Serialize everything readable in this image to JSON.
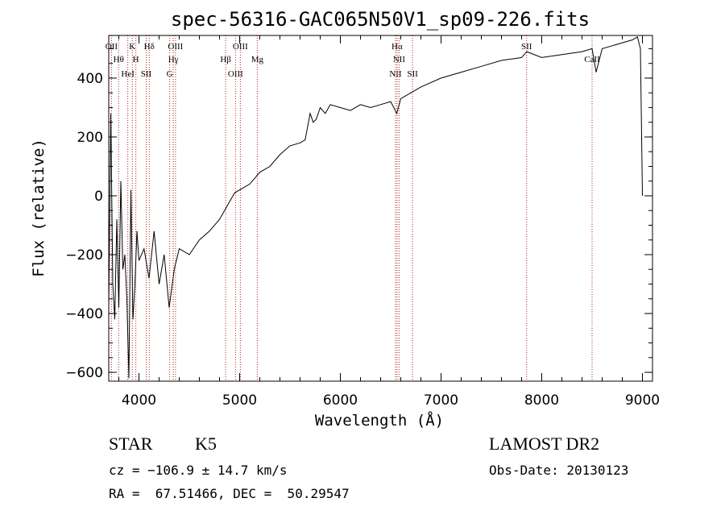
{
  "chart_data": {
    "type": "line",
    "title": "spec-56316-GAC065N50V1_sp09-226.fits",
    "xlabel": "Wavelength (Å)",
    "ylabel": "Flux (relative)",
    "xlim": [
      3700,
      9100
    ],
    "ylim": [
      -630,
      545
    ],
    "xticks": [
      4000,
      5000,
      6000,
      7000,
      8000,
      9000
    ],
    "yticks": [
      -600,
      -400,
      -200,
      0,
      200,
      400
    ],
    "x_minor_step": 200,
    "y_minor_step": 50,
    "series": [
      {
        "x": [
          3700,
          3720,
          3740,
          3760,
          3780,
          3800,
          3820,
          3840,
          3860,
          3880,
          3900,
          3920,
          3940,
          3960,
          3980,
          4000,
          4050,
          4100,
          4150,
          4200,
          4250,
          4300,
          4350,
          4400,
          4500,
          4600,
          4700,
          4800,
          4850,
          4900,
          4950,
          5000,
          5100,
          5200,
          5300,
          5400,
          5500,
          5600,
          5650,
          5700,
          5730,
          5760,
          5800,
          5850,
          5900,
          6000,
          6100,
          6200,
          6300,
          6400,
          6500,
          6560,
          6600,
          6700,
          6800,
          7000,
          7200,
          7400,
          7600,
          7800,
          7850,
          8000,
          8200,
          8400,
          8500,
          8540,
          8600,
          8700,
          8800,
          8900,
          8950,
          8980,
          9000
        ],
        "y": [
          -380,
          280,
          -300,
          -420,
          -80,
          -380,
          50,
          -250,
          -200,
          -350,
          -620,
          20,
          -420,
          -300,
          -120,
          -220,
          -180,
          -280,
          -120,
          -300,
          -200,
          -380,
          -250,
          -180,
          -200,
          -150,
          -120,
          -80,
          -50,
          -20,
          10,
          20,
          40,
          80,
          100,
          140,
          170,
          180,
          190,
          280,
          250,
          260,
          300,
          280,
          310,
          300,
          290,
          310,
          300,
          310,
          320,
          280,
          330,
          350,
          370,
          400,
          420,
          440,
          460,
          470,
          490,
          470,
          480,
          490,
          500,
          420,
          500,
          510,
          520,
          530,
          540,
          500,
          0
        ],
        "color": "#000000"
      }
    ],
    "lines": [
      {
        "label": "OII",
        "x": 3727
      },
      {
        "label": "Hθ",
        "x": 3798
      },
      {
        "label": "HeI",
        "x": 3889
      },
      {
        "label": "K",
        "x": 3934
      },
      {
        "label": "H",
        "x": 3969
      },
      {
        "label": "SII",
        "x": 4072
      },
      {
        "label": "Hδ",
        "x": 4102
      },
      {
        "label": "Hγ",
        "x": 4341
      },
      {
        "label": "G",
        "x": 4305
      },
      {
        "label": "OIII",
        "x": 4363
      },
      {
        "label": "Hβ",
        "x": 4861
      },
      {
        "label": "OIII",
        "x": 4959
      },
      {
        "label": "OIII",
        "x": 5007
      },
      {
        "label": "Mg",
        "x": 5175
      },
      {
        "label": "NII",
        "x": 6548
      },
      {
        "label": "Hα",
        "x": 6563
      },
      {
        "label": "NII",
        "x": 6583
      },
      {
        "label": "SII",
        "x": 6717
      },
      {
        "label": "SII",
        "x": 7850
      },
      {
        "label": "CaII",
        "x": 8500
      }
    ]
  },
  "info": {
    "class": "STAR",
    "subclass": "K5",
    "survey": "LAMOST DR2",
    "cz": "cz = −106.9 ± 14.7 km/s",
    "obs_date": "Obs-Date: 20130123",
    "coords": "RA =  67.51466, DEC =  50.29547"
  },
  "colors": {
    "line_marker": "#b22222",
    "spectrum": "#000000"
  }
}
